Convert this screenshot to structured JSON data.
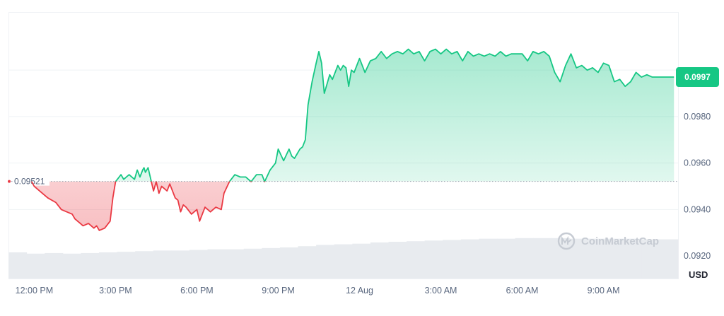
{
  "chart_data": {
    "type": "line",
    "y_unit": "USD",
    "ylim": [
      0.091,
      0.1025
    ],
    "y_ticks": [
      "0.0920",
      "0.0940",
      "0.0960",
      "0.0980"
    ],
    "y_tick_values": [
      0.092,
      0.094,
      0.096,
      0.098
    ],
    "x_ticks": [
      "12:00 PM",
      "3:00 PM",
      "6:00 PM",
      "9:00 PM",
      "12 Aug",
      "3:00 AM",
      "6:00 AM",
      "9:00 AM"
    ],
    "x_tick_hours": [
      0,
      3,
      6,
      9,
      12,
      15,
      18,
      21
    ],
    "xlim_hours": [
      -0.95,
      23.75
    ],
    "baseline": {
      "value": 0.09521,
      "label": "0.09521"
    },
    "current_price": {
      "value": 0.0997,
      "label": "0.0997"
    },
    "series": [
      {
        "x": [
          -0.1,
          0.0,
          0.3,
          0.5,
          0.8,
          1.0,
          1.2,
          1.4,
          1.5,
          1.7,
          1.8,
          2.0,
          2.2,
          2.3,
          2.4,
          2.6,
          2.8,
          2.9,
          3.0,
          3.2,
          3.3,
          3.4,
          3.5,
          3.7,
          3.8,
          3.9,
          4.0,
          4.05,
          4.1,
          4.2,
          4.4,
          4.5,
          4.6,
          4.7,
          4.9,
          5.0,
          5.2,
          5.3,
          5.4,
          5.5,
          5.6,
          5.8,
          6.0,
          6.1,
          6.3,
          6.5,
          6.7,
          6.9,
          7.0,
          7.2,
          7.4,
          7.6,
          7.8,
          8.0,
          8.2,
          8.4,
          8.5,
          8.7,
          8.9,
          9.0,
          9.2,
          9.4,
          9.5,
          9.6,
          9.7,
          9.8,
          9.9,
          10.0,
          10.1,
          10.25,
          10.4,
          10.5,
          10.6,
          10.7,
          10.8,
          10.9,
          11.0,
          11.1,
          11.2,
          11.3,
          11.4,
          11.5,
          11.6,
          11.7,
          11.8,
          12.0,
          12.2,
          12.4,
          12.6,
          12.8,
          13.0,
          13.2,
          13.4,
          13.6,
          13.8,
          14.0,
          14.2,
          14.4,
          14.6,
          14.8,
          15.0,
          15.2,
          15.4,
          15.6,
          15.8,
          16.0,
          16.2,
          16.4,
          16.6,
          16.8,
          17.0,
          17.2,
          17.4,
          17.6,
          17.8,
          18.0,
          18.2,
          18.4,
          18.6,
          18.8,
          19.0,
          19.2,
          19.4,
          19.6,
          19.8,
          20.0,
          20.2,
          20.4,
          20.6,
          20.8,
          21.0,
          21.2,
          21.4,
          21.6,
          21.8,
          22.0,
          22.2,
          22.4,
          22.6,
          22.8,
          23.0,
          23.2,
          23.4,
          23.6
        ],
        "y": [
          0.09521,
          0.095,
          0.0947,
          0.0945,
          0.0943,
          0.094,
          0.0939,
          0.0938,
          0.0936,
          0.0934,
          0.0933,
          0.0934,
          0.0932,
          0.0933,
          0.0931,
          0.0932,
          0.0935,
          0.0945,
          0.0952,
          0.0955,
          0.0953,
          0.0954,
          0.0955,
          0.0953,
          0.0957,
          0.0954,
          0.0957,
          0.0958,
          0.0956,
          0.0958,
          0.0948,
          0.0952,
          0.0947,
          0.095,
          0.0948,
          0.0951,
          0.0945,
          0.0944,
          0.0939,
          0.0942,
          0.0941,
          0.0938,
          0.094,
          0.0935,
          0.0941,
          0.0939,
          0.0941,
          0.094,
          0.0947,
          0.0952,
          0.0955,
          0.0954,
          0.0954,
          0.0952,
          0.0955,
          0.0955,
          0.0952,
          0.0957,
          0.096,
          0.0966,
          0.0961,
          0.0966,
          0.0963,
          0.0962,
          0.0964,
          0.0966,
          0.0967,
          0.097,
          0.0985,
          0.0995,
          0.1003,
          0.1008,
          0.1003,
          0.099,
          0.0994,
          0.0998,
          0.0996,
          0.0999,
          0.1002,
          0.1,
          0.1002,
          0.1001,
          0.0993,
          0.1,
          0.0999,
          0.1005,
          0.0999,
          0.1004,
          0.1005,
          0.1008,
          0.1005,
          0.1007,
          0.1008,
          0.1007,
          0.1009,
          0.1007,
          0.1008,
          0.1004,
          0.1008,
          0.1009,
          0.1007,
          0.1009,
          0.1007,
          0.1008,
          0.1004,
          0.1008,
          0.1006,
          0.1007,
          0.1006,
          0.1007,
          0.1006,
          0.1008,
          0.1006,
          0.1007,
          0.1007,
          0.1007,
          0.1004,
          0.1008,
          0.1007,
          0.1008,
          0.1006,
          0.0999,
          0.0995,
          0.1002,
          0.1007,
          0.1001,
          0.1002,
          0.1,
          0.1001,
          0.0999,
          0.1003,
          0.1002,
          0.0995,
          0.0996,
          0.0993,
          0.0995,
          0.0999,
          0.0997,
          0.0998,
          0.0997,
          0.0997,
          0.0997,
          0.0997,
          0.0997
        ]
      }
    ],
    "volume_bars": [
      0.42,
      0.4,
      0.41,
      0.4,
      0.41,
      0.42,
      0.43,
      0.44,
      0.45,
      0.45,
      0.46,
      0.47,
      0.47,
      0.48,
      0.49,
      0.5,
      0.52,
      0.54,
      0.55,
      0.56,
      0.58,
      0.59,
      0.6,
      0.61,
      0.62,
      0.63,
      0.64,
      0.64,
      0.65,
      0.65,
      0.65,
      0.64,
      0.64,
      0.64,
      0.64,
      0.63,
      0.63
    ]
  },
  "watermark": {
    "text": "CoinMarketCap"
  },
  "colors": {
    "up": "#16c784",
    "down": "#ea3943",
    "price_tag": "#16c784",
    "grid": "#eff2f5",
    "volume": "#e8ebef"
  }
}
